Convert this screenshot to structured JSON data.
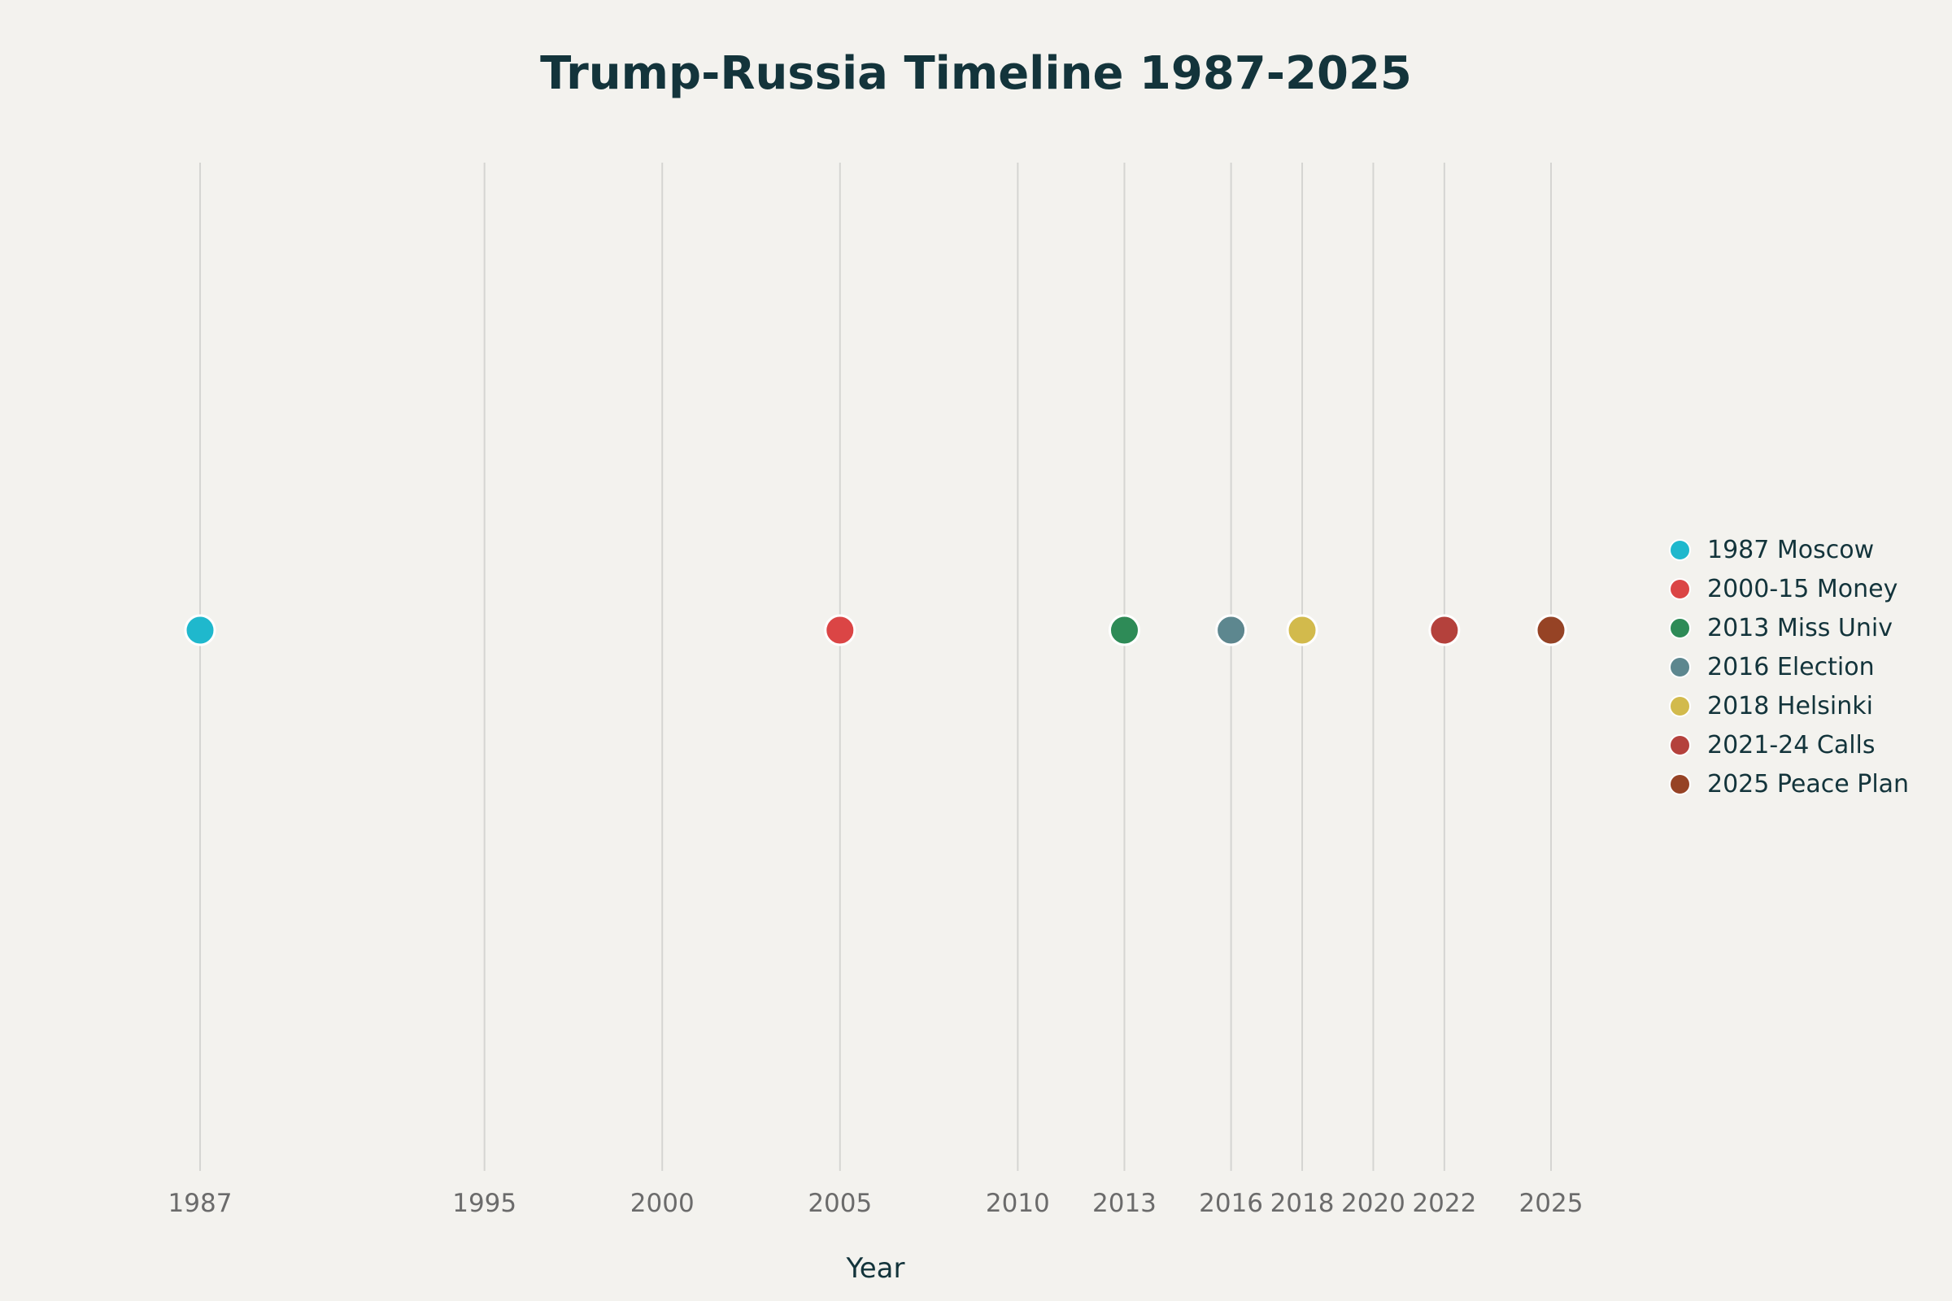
{
  "chart_data": {
    "type": "scatter",
    "title": "Trump-Russia Timeline 1987-2025",
    "xlabel": "Year",
    "ylabel": "",
    "xlim": [
      1984,
      2030
    ],
    "grid": true,
    "legend_placement": "right",
    "x_ticks": [
      1987,
      1995,
      2000,
      2005,
      2010,
      2013,
      2016,
      2018,
      2020,
      2022,
      2025
    ],
    "series": [
      {
        "name": "1987 Moscow",
        "x": [
          1987
        ],
        "y": [
          0
        ],
        "color": "#1FB8CD"
      },
      {
        "name": "2000-15 Money",
        "x": [
          2005
        ],
        "y": [
          0
        ],
        "color": "#DB4545"
      },
      {
        "name": "2013 Miss Univ",
        "x": [
          2013
        ],
        "y": [
          0
        ],
        "color": "#2E8B57"
      },
      {
        "name": "2016 Election",
        "x": [
          2016
        ],
        "y": [
          0
        ],
        "color": "#5D878F"
      },
      {
        "name": "2018 Helsinki",
        "x": [
          2018
        ],
        "y": [
          0
        ],
        "color": "#D2BA4C"
      },
      {
        "name": "2021-24 Calls",
        "x": [
          2022
        ],
        "y": [
          0
        ],
        "color": "#B4413C"
      },
      {
        "name": "2025 Peace Plan",
        "x": [
          2025
        ],
        "y": [
          0
        ],
        "color": "#964325"
      }
    ]
  },
  "colors": {
    "background": "#F3F2EE",
    "grid": "#D5D5D2",
    "title": "#13343B",
    "tick_label": "#6B6B6B"
  }
}
